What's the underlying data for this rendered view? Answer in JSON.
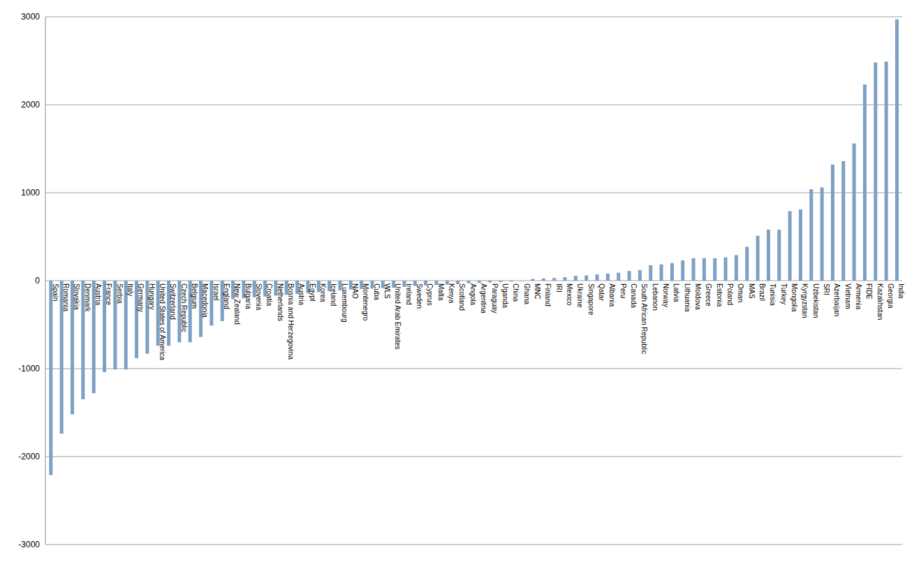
{
  "chart_data": {
    "type": "bar",
    "categories": [
      "Spain",
      "Romania",
      "Slovakia",
      "Denmark",
      "Austria",
      "France",
      "Serbia",
      "Italy",
      "Germany",
      "Hungary",
      "United States of America",
      "Switzerland",
      "Czech Republic",
      "Belgium",
      "Macedonia",
      "Israel",
      "England",
      "New Zealand",
      "Bulgaria",
      "Slovenia",
      "Croatia",
      "Netherlands",
      "Bosnia and Herzegovina",
      "Austria",
      "Egypt",
      "Korea",
      "Iceland",
      "Luxembourg",
      "NAO",
      "Montenegro",
      "Cuba",
      "WLS",
      "United Arab Emirates",
      "Ireland",
      "Sweden",
      "Cyprus",
      "Malta",
      "Kenya",
      "Scotland",
      "Angola",
      "Argentina",
      "Paraguay",
      "Uganda",
      "China",
      "Ghana",
      "MNC",
      "Finland",
      "IRI",
      "Mexico",
      "Ukraine",
      "Singapore",
      "Qatar",
      "Albania",
      "Peru",
      "Canada",
      "South African Republic",
      "Lebanon",
      "Norway",
      "Latvia",
      "Lithuania",
      "Moldova",
      "Greece",
      "Estonia",
      "Poland",
      "Oman",
      "MAS",
      "Brazil",
      "Tunisia",
      "Turkey",
      "Mongolia",
      "Kyrgyzstan",
      "Uzbekistan",
      "SRI",
      "Azerbaijan",
      "Vietnam",
      "Armenia",
      "FIDE",
      "Kazakhstan",
      "Georgia",
      "India"
    ],
    "values": [
      -2210,
      -1740,
      -1520,
      -1350,
      -1280,
      -1040,
      -1010,
      -1010,
      -880,
      -830,
      -740,
      -740,
      -700,
      -700,
      -640,
      -510,
      -460,
      -210,
      -200,
      -190,
      -180,
      -170,
      -160,
      -150,
      -140,
      -130,
      -120,
      -110,
      -100,
      -95,
      -90,
      -85,
      -80,
      -70,
      -60,
      -55,
      -50,
      -45,
      -40,
      -30,
      -25,
      -20,
      -15,
      -10,
      -5,
      20,
      25,
      30,
      40,
      55,
      60,
      70,
      80,
      90,
      110,
      120,
      175,
      185,
      200,
      230,
      255,
      255,
      255,
      265,
      290,
      385,
      510,
      580,
      580,
      790,
      810,
      1040,
      1060,
      1320,
      1360,
      1560,
      2230,
      2480,
      2490,
      2970
    ],
    "color": "#7da0c4",
    "ylim": [
      -3000,
      3000
    ],
    "yticks": [
      -3000,
      -2000,
      -1000,
      0,
      1000,
      2000,
      3000
    ],
    "grid": true
  }
}
